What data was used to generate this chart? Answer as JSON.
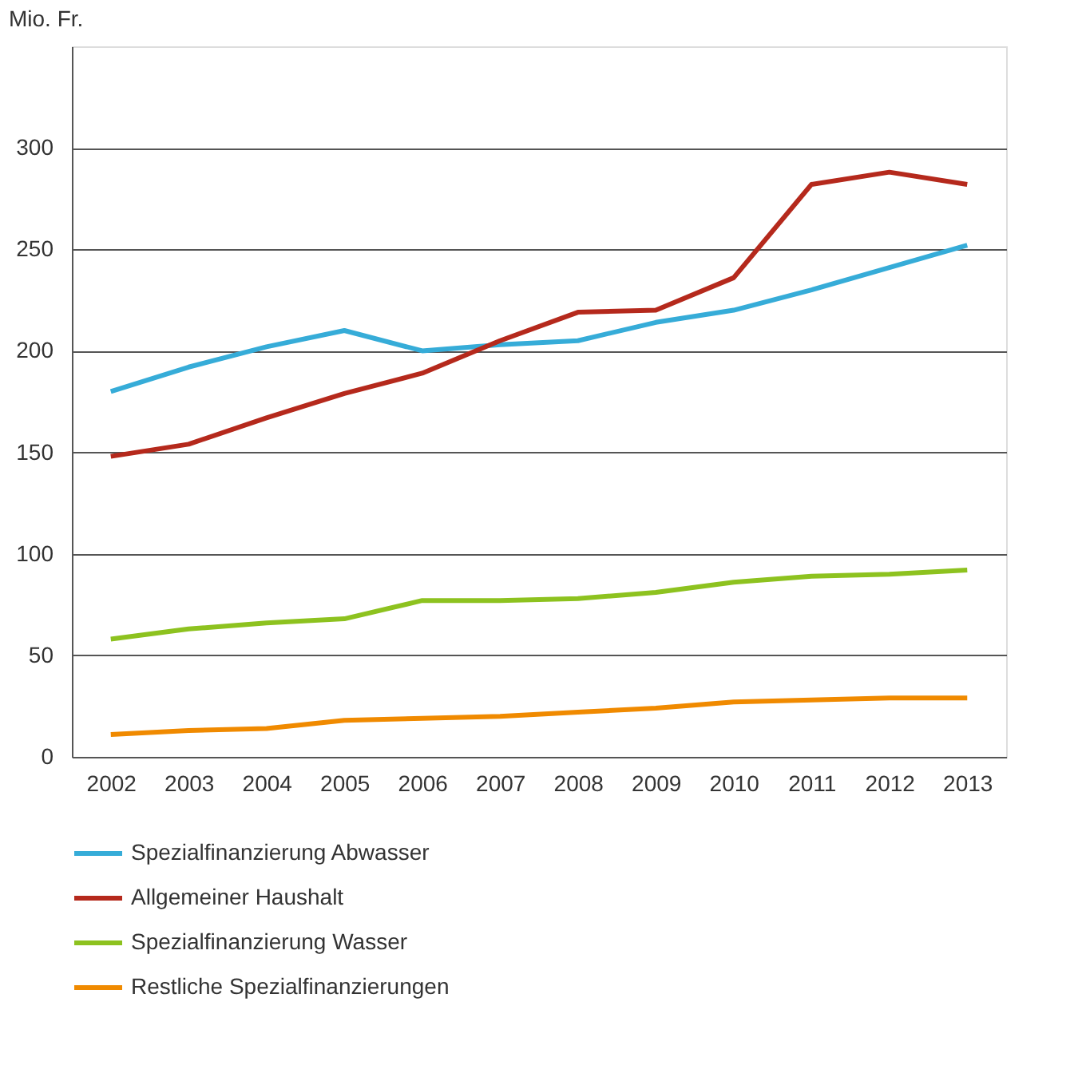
{
  "chart_data": {
    "type": "line",
    "ylabel": "Mio. Fr.",
    "categories": [
      "2002",
      "2003",
      "2004",
      "2005",
      "2006",
      "2007",
      "2008",
      "2009",
      "2010",
      "2011",
      "2012",
      "2013"
    ],
    "series": [
      {
        "name": "Spezialfinanzierung Abwasser",
        "color": "#36acd8",
        "values": [
          180,
          192,
          202,
          210,
          200,
          203,
          205,
          214,
          220,
          230,
          241,
          252
        ]
      },
      {
        "name": "Allgemeiner Haushalt",
        "color": "#b5291c",
        "values": [
          148,
          154,
          167,
          179,
          189,
          205,
          219,
          220,
          236,
          282,
          288,
          282
        ]
      },
      {
        "name": "Spezialfinanzierung Wasser",
        "color": "#8dc21f",
        "values": [
          58,
          63,
          66,
          68,
          77,
          77,
          78,
          81,
          86,
          89,
          90,
          92
        ]
      },
      {
        "name": "Restliche Spezialfinanzierungen",
        "color": "#f08a00",
        "values": [
          11,
          13,
          14,
          18,
          19,
          20,
          22,
          24,
          27,
          28,
          29,
          29
        ]
      }
    ],
    "ylim": [
      0,
      350
    ],
    "yticks": [
      0,
      50,
      100,
      150,
      200,
      250,
      300
    ],
    "grid": "y",
    "legend": "bottom",
    "marker": "none",
    "line_style": "solid"
  }
}
